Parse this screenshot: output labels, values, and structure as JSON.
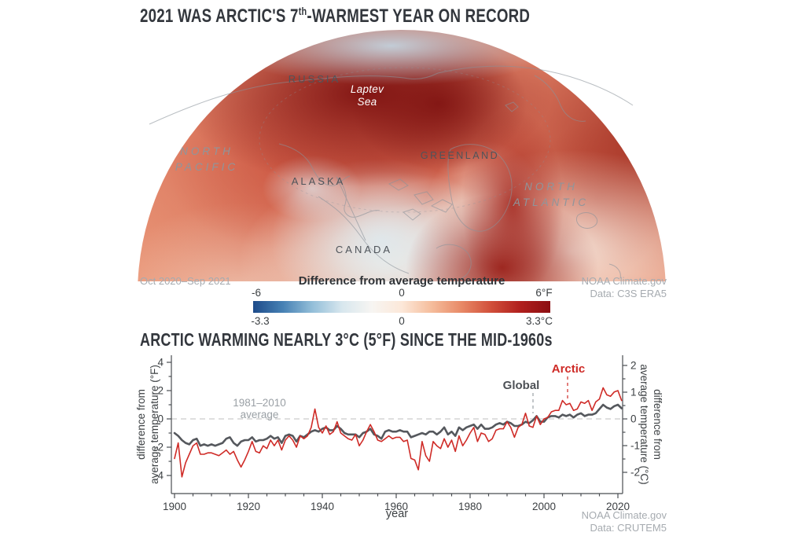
{
  "map_section": {
    "title": {
      "prefix": "2021 WAS ARCTIC'S 7",
      "ordinal_suffix": "th",
      "suffix": "-WARMEST YEAR ON RECORD"
    },
    "labels": {
      "russia": "RUSSIA",
      "laptev_line1": "Laptev",
      "laptev_line2": "Sea",
      "north_pacific_line1": "NORTH",
      "north_pacific_line2": "PACIFIC",
      "alaska": "ALASKA",
      "greenland": "GREENLAND",
      "north_atlantic_line1": "NORTH",
      "north_atlantic_line2": "ATLANTIC",
      "canada": "CANADA"
    },
    "date_range": "Oct 2020–Sep 2021",
    "colorbar": {
      "title": "Difference from average temperature",
      "f_labels": {
        "min": "-6",
        "mid": "0",
        "max": "6°F"
      },
      "c_labels": {
        "min": "-3.3",
        "mid": "0",
        "max": "3.3°C"
      },
      "gradient_colors": [
        "#1d4b8a",
        "#4781b4",
        "#94bfd9",
        "#d8e7ee",
        "#f7f5f2",
        "#fce8d9",
        "#f5bd9c",
        "#e88a67",
        "#d14f3a",
        "#b01f1d",
        "#8c0e12"
      ]
    },
    "attribution_line1": "NOAA Climate.gov",
    "attribution_line2": "Data: C3S ERA5"
  },
  "chart_section": {
    "title": "ARCTIC WARMING NEARLY 3°C (5°F) SINCE THE MID-1960s",
    "avg_label_line1": "1981–2010",
    "avg_label_line2": "average",
    "ylabel_left_line1": "difference from",
    "ylabel_left_line2": "average temperature (°F)",
    "ylabel_right_line1": "difference from",
    "ylabel_right_line2": "average temperature (°C)",
    "xlabel": "year",
    "legend": {
      "global": "Global",
      "arctic": "Arctic"
    },
    "attribution_line1": "NOAA Climate.gov",
    "attribution_line2": "Data: CRUTEM5"
  },
  "chart_data": {
    "type": "line",
    "title": "ARCTIC WARMING NEARLY 3°C (5°F) SINCE THE MID-1960s",
    "xlabel": "year",
    "ylabel_left": "difference from average temperature (°F)",
    "ylabel_right": "difference from average temperature (°C)",
    "x_start": 1900,
    "x_end": 2021,
    "x_ticks": [
      1900,
      1920,
      1940,
      1960,
      1980,
      2000,
      2020
    ],
    "x_minor_step": 5,
    "y_ticks_F": [
      4,
      2,
      0,
      -2,
      -4
    ],
    "y_ticks_C": [
      2,
      1,
      0,
      -1,
      -2
    ],
    "ylim_F": [
      -4.8,
      4.4
    ],
    "grid": false,
    "reference_line": {
      "value_F": 0,
      "label": "1981–2010 average",
      "style": "dashed",
      "color": "#cccccc"
    },
    "series": [
      {
        "name": "Global",
        "color": "#55585d",
        "line_width": 2.6,
        "values_F": [
          -1.0,
          -1.2,
          -1.5,
          -1.7,
          -1.8,
          -1.5,
          -1.4,
          -1.9,
          -1.8,
          -1.9,
          -1.8,
          -1.9,
          -1.8,
          -1.7,
          -1.4,
          -1.3,
          -1.7,
          -1.9,
          -1.6,
          -1.5,
          -1.5,
          -1.3,
          -1.6,
          -1.5,
          -1.5,
          -1.4,
          -1.2,
          -1.4,
          -1.3,
          -1.7,
          -1.2,
          -1.1,
          -1.2,
          -1.6,
          -1.2,
          -1.3,
          -1.1,
          -0.9,
          -0.8,
          -0.9,
          -0.7,
          -0.6,
          -0.8,
          -0.8,
          -0.5,
          -0.7,
          -1.0,
          -1.1,
          -1.1,
          -1.1,
          -1.3,
          -1.0,
          -0.9,
          -0.7,
          -1.1,
          -1.2,
          -1.4,
          -0.9,
          -0.8,
          -0.9,
          -0.9,
          -0.8,
          -0.9,
          -0.9,
          -1.3,
          -1.2,
          -1.1,
          -1.0,
          -1.1,
          -0.9,
          -0.9,
          -1.1,
          -0.9,
          -0.6,
          -1.1,
          -0.9,
          -1.2,
          -0.6,
          -0.8,
          -0.6,
          -0.5,
          -0.4,
          -0.7,
          -0.4,
          -0.7,
          -0.7,
          -0.6,
          -0.4,
          -0.3,
          -0.4,
          -0.2,
          -0.3,
          -0.5,
          -0.5,
          -0.4,
          -0.2,
          -0.3,
          -0.1,
          0.2,
          -0.2,
          -0.2,
          0.1,
          0.2,
          0.2,
          0.1,
          0.3,
          0.2,
          0.3,
          0.1,
          0.3,
          0.4,
          0.2,
          0.3,
          0.3,
          0.4,
          0.7,
          1.0,
          0.8,
          0.7,
          0.9,
          1.0,
          0.75
        ]
      },
      {
        "name": "Arctic",
        "color": "#cf2b27",
        "line_width": 1.6,
        "values_F": [
          -2.8,
          -1.7,
          -4.1,
          -3.1,
          -2.5,
          -1.9,
          -1.7,
          -2.5,
          -2.5,
          -2.4,
          -2.4,
          -2.5,
          -2.6,
          -2.4,
          -2.2,
          -2.5,
          -2.3,
          -2.9,
          -3.4,
          -2.9,
          -2.3,
          -1.6,
          -2.3,
          -2.4,
          -1.9,
          -2.1,
          -1.5,
          -1.9,
          -1.5,
          -2.2,
          -1.5,
          -1.2,
          -1.5,
          -2.0,
          -1.2,
          -1.4,
          -1.2,
          -0.6,
          0.7,
          -0.6,
          -1.0,
          -0.5,
          -1.1,
          -0.9,
          -0.2,
          -1.0,
          -1.2,
          -1.4,
          -1.5,
          -1.1,
          -1.9,
          -1.5,
          -0.9,
          -0.4,
          -0.9,
          -1.5,
          -1.6,
          -1.4,
          -1.2,
          -1.4,
          -1.3,
          -1.3,
          -1.6,
          -1.5,
          -2.8,
          -2.9,
          -3.6,
          -1.6,
          -2.6,
          -3.0,
          -1.6,
          -1.9,
          -2.1,
          -1.4,
          -2.0,
          -1.5,
          -2.3,
          -1.2,
          -1.9,
          -1.5,
          -1.0,
          -0.6,
          -1.6,
          -1.0,
          -1.1,
          -1.6,
          -1.4,
          -0.8,
          -0.7,
          -0.7,
          -0.2,
          -0.6,
          -1.3,
          -0.6,
          -0.4,
          0.4,
          -0.5,
          -0.6,
          0.2,
          -0.4,
          0.0,
          0.1,
          0.5,
          0.6,
          0.6,
          1.3,
          1.0,
          1.1,
          0.6,
          0.7,
          1.2,
          1.1,
          1.3,
          0.6,
          1.2,
          1.4,
          2.2,
          1.7,
          1.6,
          1.9,
          2.0,
          1.3
        ]
      }
    ],
    "legend_position": "inline-annotations"
  }
}
